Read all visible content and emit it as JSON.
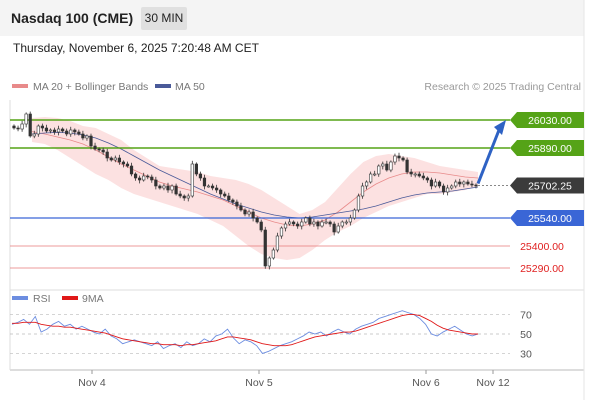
{
  "header": {
    "title": "Nasdaq 100 (CME)",
    "timeframe": "30 MIN"
  },
  "timestamp": "Thursday, November 6, 2025 7:20:48 AM CET",
  "colors": {
    "resistance": "#55a317",
    "support": "#3a66d6",
    "minor": "#e87a7a",
    "current_tag": "#3b3b3b",
    "candle": "#333333",
    "ma20": "#e88a8a",
    "ma50": "#4a5a99",
    "rsi": "#6c8de0",
    "rsi_ma": "#e01818",
    "arrow": "#2e62c4"
  },
  "chart_data": [
    {
      "type": "candlestick",
      "title": "",
      "legend": [
        {
          "label": "MA 20 + Bollinger Bands"
        },
        {
          "label": "MA 50"
        }
      ],
      "watermark": "Research © 2025 Trading Central",
      "ylim": [
        25220,
        26130
      ],
      "x_labels": [
        "Nov 4",
        "Nov 5",
        "Nov 6",
        "Nov 12"
      ],
      "levels": [
        {
          "value": 26030,
          "label": "26030.00",
          "kind": "resistance"
        },
        {
          "value": 25890,
          "label": "25890.00",
          "kind": "resistance"
        },
        {
          "value": 25702.25,
          "label": "25702.25",
          "kind": "current"
        },
        {
          "value": 25540,
          "label": "25540.00",
          "kind": "support"
        },
        {
          "value": 25400,
          "label": "25400.00",
          "kind": "minor"
        },
        {
          "value": 25290,
          "label": "25290.00",
          "kind": "minor"
        }
      ],
      "closes": [
        25990,
        25985,
        26010,
        26060,
        25950,
        25960,
        26000,
        25990,
        25975,
        25980,
        25970,
        25985,
        25975,
        25960,
        25980,
        25970,
        25960,
        25940,
        25950,
        25900,
        25885,
        25880,
        25870,
        25840,
        25830,
        25840,
        25820,
        25810,
        25800,
        25760,
        25740,
        25730,
        25750,
        25745,
        25730,
        25700,
        25690,
        25700,
        25680,
        25700,
        25660,
        25650,
        25640,
        25650,
        25810,
        25760,
        25740,
        25700,
        25700,
        25690,
        25680,
        25660,
        25650,
        25630,
        25620,
        25600,
        25580,
        25560,
        25570,
        25540,
        25520,
        25480,
        25300,
        25340,
        25380,
        25450,
        25490,
        25510,
        25520,
        25510,
        25500,
        25520,
        25540,
        25510,
        25520,
        25500,
        25520,
        25520,
        25510,
        25470,
        25500,
        25520,
        25520,
        25540,
        25580,
        25650,
        25700,
        25720,
        25760,
        25760,
        25800,
        25810,
        25780,
        25820,
        25850,
        25840,
        25830,
        25770,
        25760,
        25760,
        25750,
        25740,
        25730,
        25700,
        25720,
        25700,
        25670,
        25690,
        25700,
        25720,
        25710,
        25720,
        25710,
        25705,
        25702.25
      ],
      "ma20_bands": {
        "mid": [
          25972,
          25960,
          25945,
          25930,
          25910,
          25880,
          25845,
          25810,
          25780,
          25750,
          25720,
          25700,
          25685,
          25670,
          25650,
          25630,
          25600,
          25570,
          25540,
          25520,
          25505,
          25500,
          25510,
          25530,
          25570,
          25620,
          25670,
          25710,
          25740,
          25760,
          25770,
          25770,
          25765,
          25755,
          25745,
          25740
        ],
        "upper": [
          26040,
          26045,
          26040,
          26025,
          26000,
          25990,
          25960,
          25930,
          25880,
          25840,
          25800,
          25790,
          25780,
          25770,
          25750,
          25740,
          25730,
          25710,
          25680,
          25640,
          25600,
          25560,
          25580,
          25620,
          25690,
          25760,
          25820,
          25850,
          25860,
          25850,
          25840,
          25820,
          25800,
          25790,
          25780,
          25770
        ],
        "lower": [
          25920,
          25910,
          25880,
          25840,
          25800,
          25760,
          25730,
          25690,
          25660,
          25640,
          25620,
          25600,
          25580,
          25560,
          25530,
          25500,
          25450,
          25400,
          25360,
          25340,
          25330,
          25340,
          25380,
          25430,
          25470,
          25500,
          25540,
          25570,
          25600,
          25620,
          25640,
          25660,
          25660,
          25670,
          25680,
          25700
        ]
      },
      "ma50": [
        25960,
        25965,
        25968,
        25965,
        25955,
        25940,
        25915,
        25885,
        25850,
        25815,
        25780,
        25750,
        25720,
        25690,
        25660,
        25635,
        25610,
        25590,
        25570,
        25555,
        25545,
        25540,
        25545,
        25555,
        25565,
        25575,
        25585,
        25600,
        25620,
        25640,
        25655,
        25665,
        25670,
        25675,
        25685,
        25695
      ]
    },
    {
      "type": "line",
      "legend": [
        {
          "label": "RSI"
        },
        {
          "label": "9MA"
        }
      ],
      "ylim": [
        15,
        85
      ],
      "y_ticks": [
        70,
        50,
        30
      ],
      "series": [
        {
          "name": "RSI",
          "values": [
            60,
            62,
            65,
            60,
            68,
            52,
            55,
            60,
            63,
            58,
            60,
            55,
            58,
            55,
            52,
            50,
            55,
            48,
            45,
            40,
            42,
            44,
            42,
            40,
            38,
            42,
            35,
            38,
            40,
            36,
            42,
            38,
            40,
            45,
            42,
            48,
            50,
            55,
            46,
            40,
            44,
            42,
            38,
            30,
            32,
            35,
            38,
            40,
            42,
            45,
            48,
            52,
            50,
            52,
            48,
            52,
            55,
            52,
            50,
            55,
            58,
            60,
            62,
            66,
            68,
            70,
            72,
            74,
            72,
            70,
            66,
            60,
            50,
            48,
            52,
            55,
            58,
            54,
            50,
            48,
            50
          ],
          "values_note": null
        },
        {
          "name": "9MA",
          "values": [
            61,
            61,
            62,
            62,
            62,
            60,
            59,
            58,
            58,
            57,
            57,
            56,
            55,
            54,
            53,
            52,
            51,
            49,
            47,
            45,
            44,
            43,
            42,
            41,
            40,
            40,
            39,
            39,
            39,
            38,
            39,
            39,
            40,
            41,
            42,
            43,
            45,
            47,
            47,
            46,
            45,
            44,
            42,
            40,
            39,
            38,
            38,
            38,
            39,
            41,
            43,
            45,
            47,
            48,
            49,
            50,
            51,
            52,
            52,
            53,
            55,
            57,
            59,
            61,
            63,
            65,
            67,
            69,
            70,
            70,
            69,
            66,
            63,
            59,
            56,
            54,
            53,
            52,
            51,
            50,
            50
          ]
        }
      ]
    }
  ]
}
